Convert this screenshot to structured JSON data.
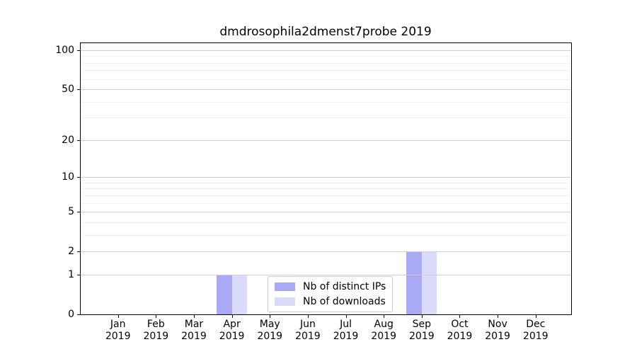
{
  "chart_data": {
    "type": "bar",
    "title": "dmdrosophila2dmenst7probe 2019",
    "categories": [
      "Jan 2019",
      "Feb 2019",
      "Mar 2019",
      "Apr 2019",
      "May 2019",
      "Jun 2019",
      "Jul 2019",
      "Aug 2019",
      "Sep 2019",
      "Oct 2019",
      "Nov 2019",
      "Dec 2019"
    ],
    "x_tick_months": [
      "Jan",
      "Feb",
      "Mar",
      "Apr",
      "May",
      "Jun",
      "Jul",
      "Aug",
      "Sep",
      "Oct",
      "Nov",
      "Dec"
    ],
    "x_tick_year": "2019",
    "series": [
      {
        "name": "Nb of distinct IPs",
        "color": "#a9a9f5",
        "values": [
          0,
          0,
          0,
          1,
          0,
          0,
          0,
          0,
          2,
          0,
          0,
          0
        ]
      },
      {
        "name": "Nb of downloads",
        "color": "#dadaf9",
        "values": [
          0,
          0,
          0,
          1,
          0,
          0,
          0,
          0,
          2,
          0,
          0,
          0
        ]
      }
    ],
    "yscale": "log1p",
    "ylim": [
      0,
      115
    ],
    "yticks": [
      100,
      50,
      20,
      10,
      5,
      2,
      1,
      0
    ],
    "yticks_minor": [
      3,
      4,
      6,
      7,
      8,
      9,
      30,
      40,
      60,
      70,
      80,
      90
    ],
    "grid": true,
    "legend_position": "inside lower center",
    "xlabel": "",
    "ylabel": ""
  },
  "colors": {
    "background": "#ffffff",
    "spine": "#000000",
    "grid_major": "#cfcfcf",
    "grid_minor": "#f0f0f0",
    "bar_distinct_ips": "#a9a9f5",
    "bar_downloads": "#dadaf9"
  }
}
